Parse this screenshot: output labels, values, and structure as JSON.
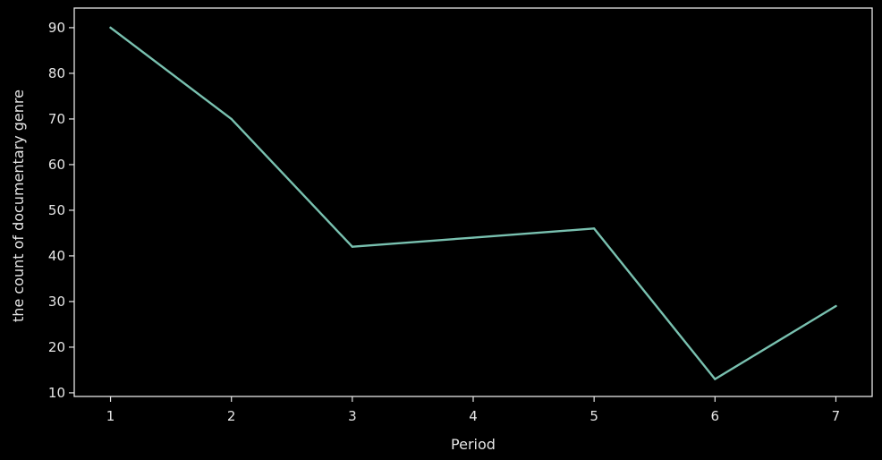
{
  "chart_data": {
    "type": "line",
    "title": "",
    "xlabel": "Period",
    "ylabel": "the count of documentary genre",
    "x": [
      1,
      2,
      3,
      4,
      5,
      6,
      7
    ],
    "series": [
      {
        "values": [
          90,
          70,
          42,
          44,
          46,
          13,
          29
        ]
      }
    ],
    "xlim": [
      0.7,
      7.3
    ],
    "ylim": [
      9.2,
      94.3
    ],
    "xticks": [
      1,
      2,
      3,
      4,
      5,
      6,
      7
    ],
    "yticks": [
      10,
      20,
      30,
      40,
      50,
      60,
      70,
      80,
      90
    ],
    "grid": false,
    "legend": "none",
    "colors": {
      "background": "#000000",
      "axes": "#e6e6e6",
      "line": "#79c1b0"
    }
  }
}
